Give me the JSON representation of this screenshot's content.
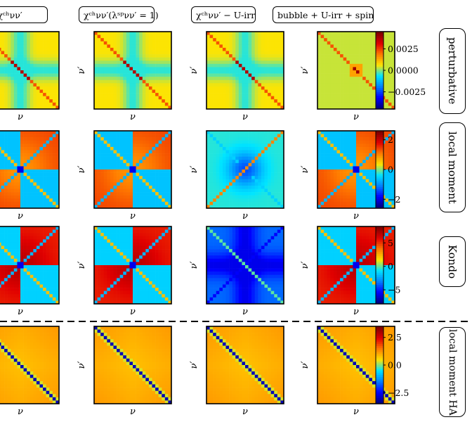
{
  "column_titles": [
    "χᶜʰνν′",
    "χᶜʰνν′(λˢᵖνν′ = 1)",
    "χᶜʰνν′ − U-irr",
    "bubble + U-irr + spin"
  ],
  "row_labels": [
    "perturbative",
    "local moment",
    "Kondo",
    "local moment HA"
  ],
  "axis_labels": {
    "x": "ν",
    "y": "ν′"
  },
  "chart_data": [
    {
      "type": "heatmap",
      "row": "perturbative",
      "colorbar_ticks": [
        "0.0025",
        "0.0000",
        "−0.0025"
      ],
      "colorbar_values": [
        0.0025,
        0,
        -0.0025
      ],
      "vmin": -0.0045,
      "vmax": 0.0045,
      "grid": "24x24",
      "patterns": [
        "cross",
        "cross",
        "cross",
        "diag"
      ]
    },
    {
      "type": "heatmap",
      "row": "local moment",
      "colorbar_ticks": [
        "2",
        "0",
        "−2"
      ],
      "colorbar_values": [
        2,
        0,
        -2
      ],
      "vmin": -2.6,
      "vmax": 2.6,
      "grid": "24x24",
      "patterns": [
        "quad",
        "quad",
        "star",
        "quad"
      ]
    },
    {
      "type": "heatmap",
      "row": "Kondo",
      "colorbar_ticks": [
        "5",
        "0",
        "−5"
      ],
      "colorbar_values": [
        5,
        0,
        -5
      ],
      "vmin": -8,
      "vmax": 8.5,
      "grid": "24x24",
      "patterns": [
        "quad",
        "quad",
        "dark",
        "quad"
      ]
    },
    {
      "type": "heatmap",
      "row": "local moment HA",
      "colorbar_ticks": [
        "2.5",
        "0.0",
        "−2.5"
      ],
      "colorbar_values": [
        2.5,
        0,
        -2.5
      ],
      "vmin": -3.5,
      "vmax": 3.5,
      "grid": "24x24",
      "patterns": [
        "flat",
        "flat",
        "flat",
        "flat"
      ]
    }
  ],
  "colormap": [
    "#00007f",
    "#0000ff",
    "#0080ff",
    "#00e5ff",
    "#ffe400",
    "#ff7a00",
    "#e10000",
    "#7f0000"
  ]
}
